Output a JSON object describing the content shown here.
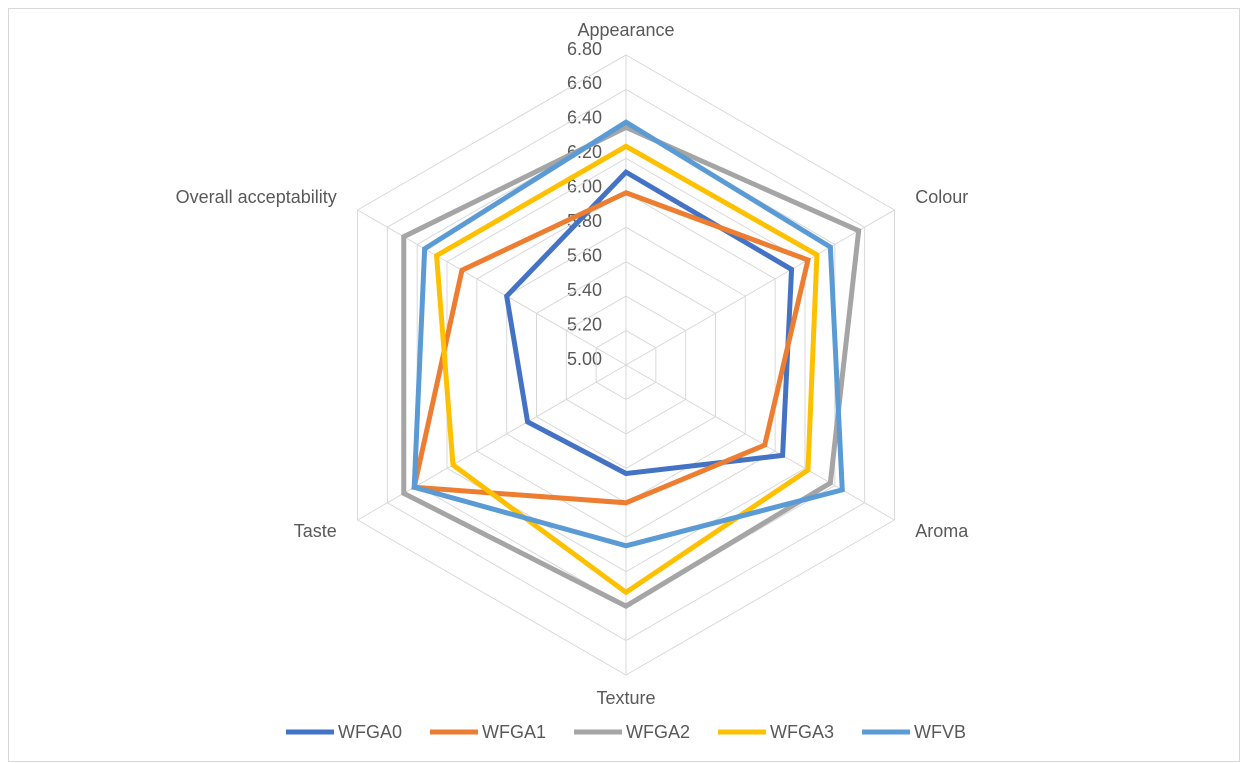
{
  "chart_data": {
    "type": "radar",
    "categories": [
      "Appearance",
      "Colour",
      "Aroma",
      "Texture",
      "Taste",
      "Overall acceptability"
    ],
    "rlim": [
      5,
      6.8
    ],
    "rticks": [
      {
        "value": 5,
        "label": "5.00"
      },
      {
        "value": 5.2,
        "label": "5.20"
      },
      {
        "value": 5.4,
        "label": "5.40"
      },
      {
        "value": 5.6,
        "label": "5.60"
      },
      {
        "value": 5.8,
        "label": "5.80"
      },
      {
        "value": 6,
        "label": "6.00"
      },
      {
        "value": 6.2,
        "label": "6.20"
      },
      {
        "value": 6.4,
        "label": "6.40"
      },
      {
        "value": 6.6,
        "label": "6.60"
      },
      {
        "value": 6.8,
        "label": "6.80"
      }
    ],
    "grid": true,
    "legend": "bottom",
    "series": [
      {
        "name": "WFGA0",
        "color": "#4472c4",
        "values": [
          6.12,
          6.11,
          6.05,
          5.63,
          5.66,
          5.8
        ]
      },
      {
        "name": "WFGA1",
        "color": "#ed7d31",
        "values": [
          6.0,
          6.22,
          5.93,
          5.8,
          6.42,
          6.1
        ]
      },
      {
        "name": "WFGA2",
        "color": "#a5a5a5",
        "values": [
          6.38,
          6.56,
          6.37,
          6.4,
          6.49,
          6.49
        ]
      },
      {
        "name": "WFGA3",
        "color": "#ffc000",
        "values": [
          6.27,
          6.28,
          6.22,
          6.32,
          6.16,
          6.27
        ]
      },
      {
        "name": "WFVB",
        "color": "#5b9bd5",
        "values": [
          6.41,
          6.37,
          6.45,
          6.05,
          6.42,
          6.35
        ]
      }
    ]
  }
}
